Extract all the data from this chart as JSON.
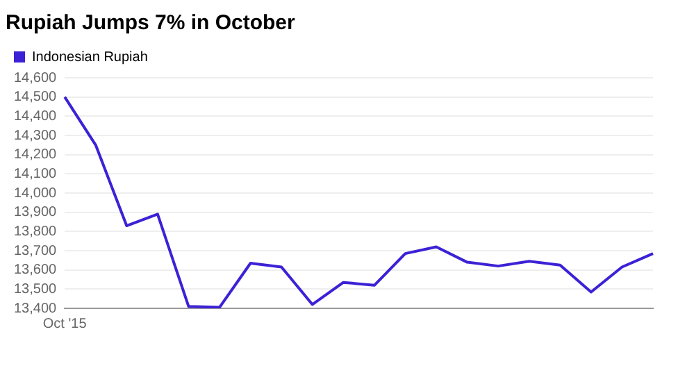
{
  "chart_data": {
    "type": "line",
    "title": "Rupiah Jumps 7% in October",
    "categories": [
      "Oct '15",
      null,
      null,
      null,
      null,
      null,
      null,
      null,
      null,
      null,
      null,
      null,
      null,
      null,
      null,
      null,
      null,
      null,
      null,
      null
    ],
    "series": [
      {
        "name": "Indonesian Rupiah",
        "color": "#3b22d6",
        "values": [
          14500,
          14250,
          13830,
          13890,
          13410,
          13405,
          13635,
          13615,
          13420,
          13535,
          13520,
          13685,
          13720,
          13640,
          13620,
          13645,
          13625,
          13485,
          13615,
          13685
        ]
      }
    ],
    "ylim": [
      13400,
      14600
    ],
    "yticks": [
      {
        "value": 13400,
        "label": "13,400"
      },
      {
        "value": 13500,
        "label": "13,500"
      },
      {
        "value": 13600,
        "label": "13,600"
      },
      {
        "value": 13700,
        "label": "13,700"
      },
      {
        "value": 13800,
        "label": "13,800"
      },
      {
        "value": 13900,
        "label": "13,900"
      },
      {
        "value": 14000,
        "label": "14,000"
      },
      {
        "value": 14100,
        "label": "14,100"
      },
      {
        "value": 14200,
        "label": "14,200"
      },
      {
        "value": 14300,
        "label": "14,300"
      },
      {
        "value": 14400,
        "label": "14,400"
      },
      {
        "value": 14500,
        "label": "14,500"
      },
      {
        "value": 14600,
        "label": "14,600"
      }
    ],
    "grid": "y",
    "legend": "top left",
    "marker": "none",
    "line_style": "solid"
  }
}
